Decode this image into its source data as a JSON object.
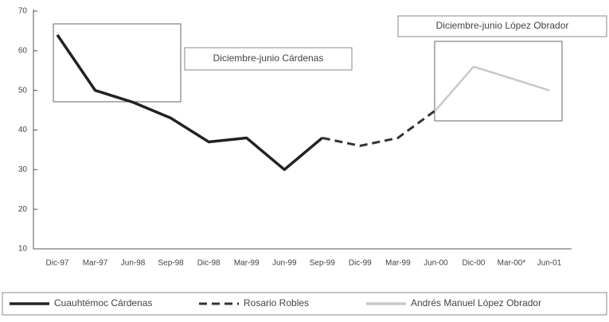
{
  "chart_data": {
    "type": "line",
    "categories": [
      "Dic-97",
      "Mar-97",
      "Jun-98",
      "Sep-98",
      "Dic-98",
      "Mar-99",
      "Jun-99",
      "Sep-99",
      "Dic-99",
      "Mar-99",
      "Jun-00",
      "Dic-00",
      "Mar-00*",
      "Jun-01"
    ],
    "series": [
      {
        "name": "Cuauhtémoc Cárdenas",
        "color": "#222222",
        "dash": "solid",
        "values": [
          64,
          50,
          47,
          43,
          37,
          38,
          30,
          38,
          null,
          null,
          null,
          null,
          null,
          null
        ]
      },
      {
        "name": "Rosario Robles",
        "color": "#333333",
        "dash": "dashed",
        "values": [
          null,
          null,
          null,
          null,
          null,
          null,
          null,
          38,
          36,
          38,
          45,
          null,
          null,
          null
        ]
      },
      {
        "name": "Andrés Manuel López Obrador",
        "color": "#c8c8c8",
        "dash": "solid",
        "values": [
          null,
          null,
          null,
          null,
          null,
          null,
          null,
          null,
          null,
          null,
          45,
          56,
          53,
          50
        ]
      }
    ],
    "annotations": [
      "Diciembre-junio Cárdenas",
      "Diciembre-junio López Obrador"
    ],
    "ylim": [
      10,
      70
    ],
    "yticks": [
      10,
      20,
      30,
      40,
      50,
      60,
      70
    ]
  }
}
